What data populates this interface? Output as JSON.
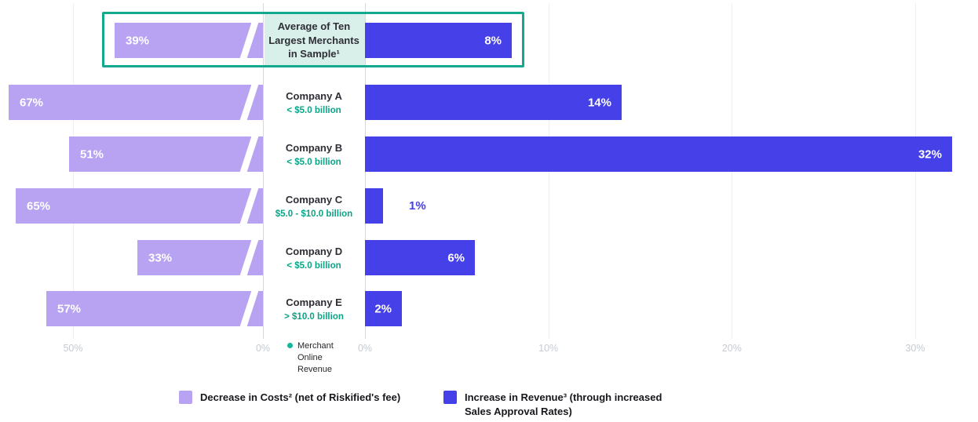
{
  "chart_data": {
    "type": "bar",
    "variant": "diverging-horizontal",
    "rows": [
      {
        "label": "Average of Ten Largest Merchants in Sample¹",
        "sublabel": "",
        "decrease_costs_pct": 39,
        "increase_revenue_pct": 8,
        "highlighted": true
      },
      {
        "label": "Company A",
        "sublabel": "< $5.0 billion",
        "decrease_costs_pct": 67,
        "increase_revenue_pct": 14,
        "highlighted": false
      },
      {
        "label": "Company B",
        "sublabel": "< $5.0 billion",
        "decrease_costs_pct": 51,
        "increase_revenue_pct": 32,
        "highlighted": false
      },
      {
        "label": "Company C",
        "sublabel": "$5.0 - $10.0 billion",
        "decrease_costs_pct": 65,
        "increase_revenue_pct": 1,
        "highlighted": false
      },
      {
        "label": "Company D",
        "sublabel": "< $5.0 billion",
        "decrease_costs_pct": 33,
        "increase_revenue_pct": 6,
        "highlighted": false
      },
      {
        "label": "Company E",
        "sublabel": "> $10.0 billion",
        "decrease_costs_pct": 57,
        "increase_revenue_pct": 2,
        "highlighted": false
      }
    ],
    "left_axis": {
      "ticks": [
        "50%",
        "0%"
      ],
      "max_pct": 50
    },
    "right_axis": {
      "ticks": [
        "0%",
        "10%",
        "20%",
        "30%"
      ],
      "max_pct": 30
    },
    "center_note": "Merchant Online Revenue",
    "legend": [
      {
        "label": "Decrease in Costs² (net of Riskified's fee)",
        "color": "#b7a3f1"
      },
      {
        "label": "Increase in Revenue³ (through increased Sales Approval Rates)",
        "color": "#4640e8"
      }
    ],
    "colors": {
      "decrease": "#b7a3f1",
      "increase": "#4640e8",
      "highlight_border": "#12a98e",
      "highlight_fill": "#d9f0ea",
      "sublabel": "#0ca486",
      "note_dot": "#15b79a",
      "axis_tick": "#c4cbd3",
      "gridline": "#edeff2",
      "axis_line": "#d5d9de"
    }
  }
}
